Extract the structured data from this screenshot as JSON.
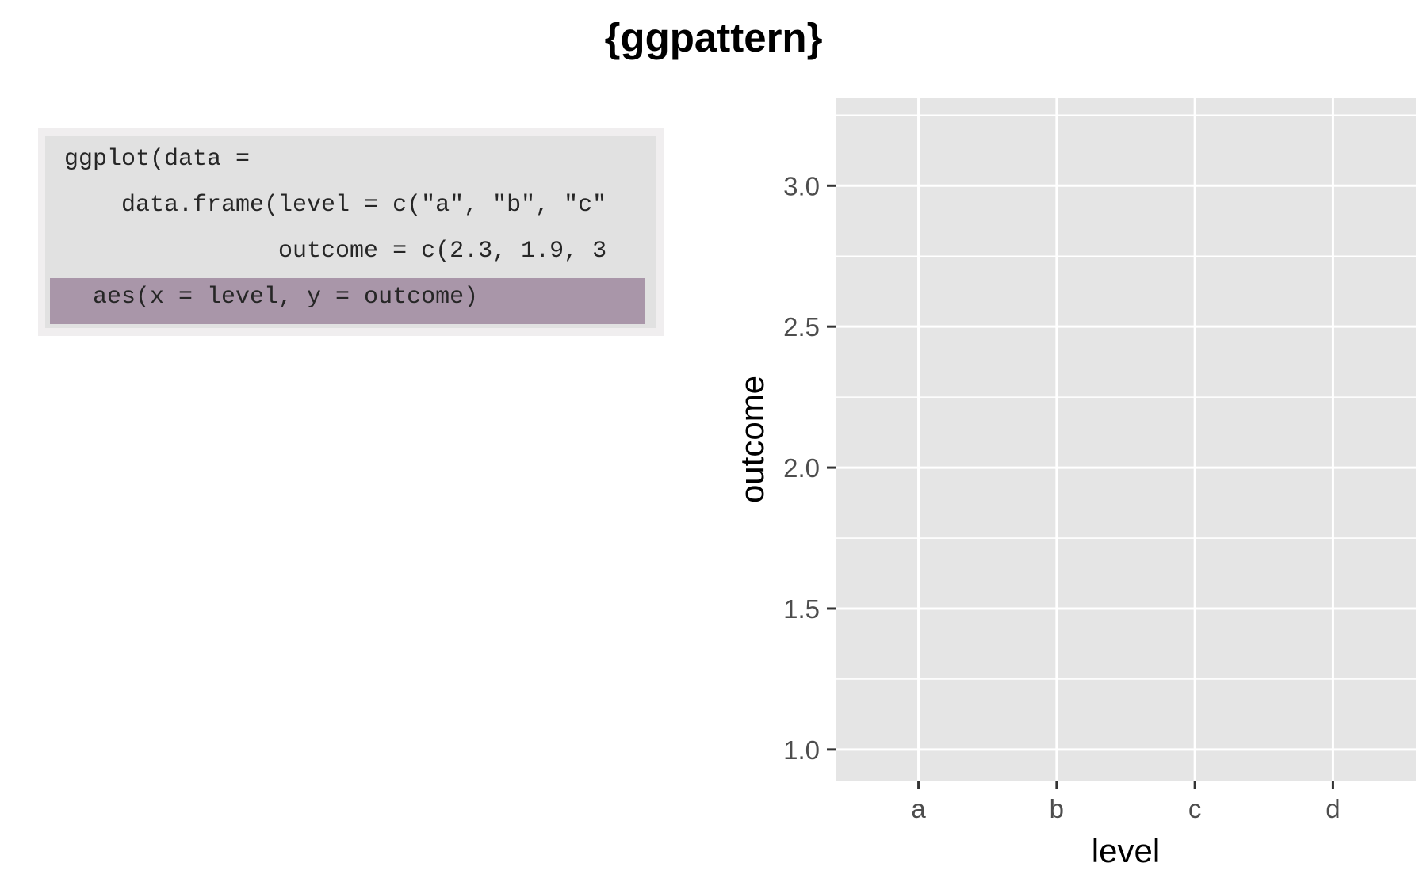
{
  "title": "{ggpattern}",
  "code": {
    "lines": [
      "ggplot(data =",
      "    data.frame(level = c(\"a\", \"b\", \"c\"",
      "               outcome = c(2.3, 1.9, 3",
      "  aes(x = level, y = outcome)"
    ],
    "highlighted_line": 3,
    "colors": {
      "panel": "#e1e1e1",
      "frame": "#f0eeef",
      "highlight": "#a996a9"
    }
  },
  "chart_data": {
    "type": "scatter",
    "categories": [
      "a",
      "b",
      "c",
      "d"
    ],
    "series": [],
    "xlabel": "level",
    "ylabel": "outcome",
    "yticks": [
      1.0,
      1.5,
      2.0,
      2.5,
      3.0
    ],
    "ytick_labels": [
      "1.0",
      "1.5",
      "2.0",
      "2.5",
      "3.0"
    ],
    "ylim": [
      0.89,
      3.31
    ],
    "grid": true,
    "colors": {
      "panel": "#e5e5e5",
      "grid": "#ffffff",
      "ticks": "#333333"
    }
  }
}
